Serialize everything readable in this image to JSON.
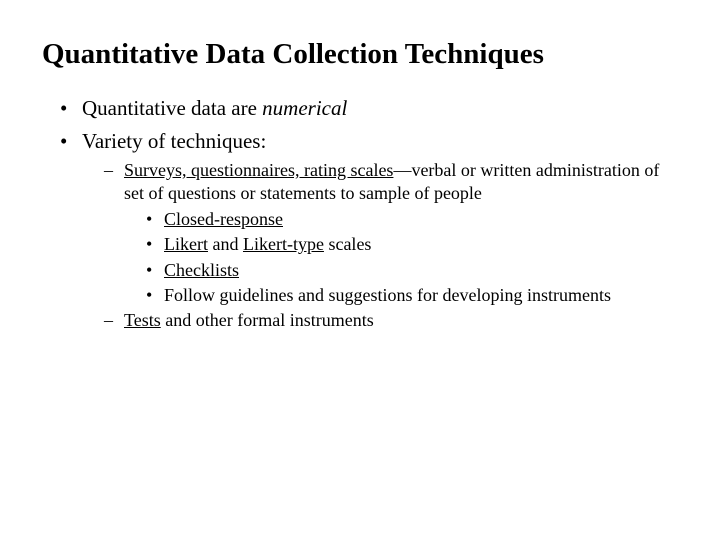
{
  "background_color": "#ffffff",
  "text_color": "#000000",
  "font_family": "Times New Roman",
  "title": {
    "text": "Quantitative Data Collection Techniques",
    "fontsize_pt": 29,
    "weight": "bold"
  },
  "bullets": {
    "fontsize_pt_level1": 21,
    "fontsize_pt_level2": 18,
    "fontsize_pt_level3": 18,
    "item1_prefix": "Quantitative data are ",
    "item1_italic": "numerical",
    "item2": "Variety of techniques:",
    "sub1_underlined": "Surveys, questionnaires, rating scales",
    "sub1_rest": "—verbal or written administration of set of questions or statements to sample of people",
    "sub1_b1": "Closed-response",
    "sub1_b2_u1": "Likert",
    "sub1_b2_mid": " and ",
    "sub1_b2_u2": "Likert-type",
    "sub1_b2_rest": " scales",
    "sub1_b3": "Checklists",
    "sub1_b4": "Follow guidelines and suggestions for developing instruments",
    "sub2_underlined": "Tests",
    "sub2_rest": " and other formal instruments"
  }
}
